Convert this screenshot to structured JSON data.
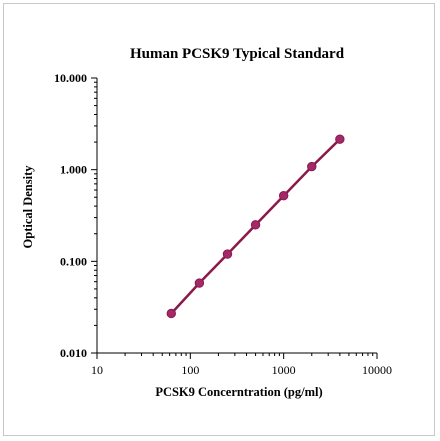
{
  "chart_data": {
    "type": "line",
    "title": "Human PCSK9 Typical Standard",
    "xlabel": "PCSK9 Concerntration (pg/ml)",
    "ylabel": "Optical Density",
    "x_scale": "log",
    "y_scale": "log",
    "xlim": [
      10,
      10000
    ],
    "ylim": [
      0.01,
      10
    ],
    "x_ticks": [
      10,
      100,
      1000,
      10000
    ],
    "x_tick_labels": [
      "10",
      "100",
      "1000",
      "10000"
    ],
    "y_ticks": [
      10,
      1,
      0.1,
      0.01
    ],
    "y_tick_labels": [
      "10.000",
      "1.000",
      "0.100",
      "0.010"
    ],
    "grid": false,
    "legend": "none",
    "series": [
      {
        "x": [
          62.5,
          125,
          250,
          500,
          1000,
          2000,
          4000
        ],
        "y": [
          0.027,
          0.058,
          0.12,
          0.25,
          0.52,
          1.08,
          2.15
        ],
        "color": "#8b1a4a",
        "marker_color": "#a3296b"
      }
    ]
  }
}
